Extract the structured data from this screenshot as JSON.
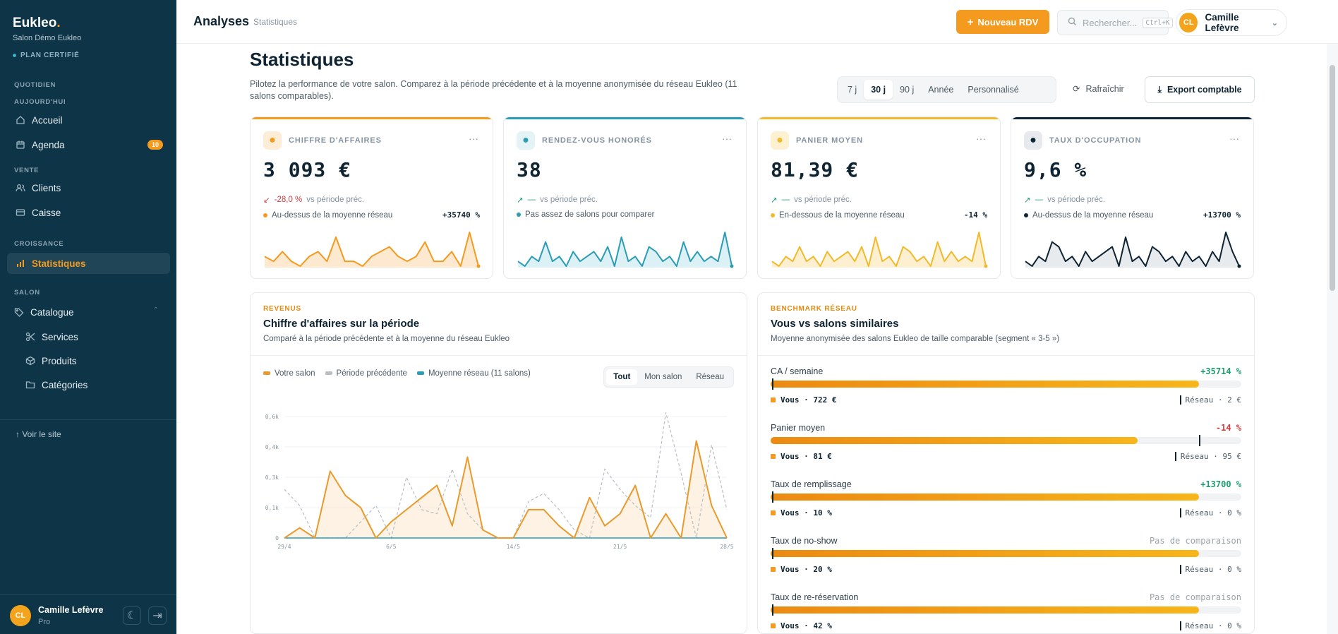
{
  "sidebar": {
    "brand": "Eukleo",
    "brand_dot": ".",
    "salon": "Salon Démo Eukleo",
    "plan": "PLAN CERTIFIÉ",
    "sec_quotidien": "QUOTIDIEN",
    "sec_aujourdhui": "AUJOURD'HUI",
    "accueil": "Accueil",
    "agenda": "Agenda",
    "agenda_badge": "10",
    "sec_vente": "VENTE",
    "clients": "Clients",
    "caisse": "Caisse",
    "sec_croissance": "CROISSANCE",
    "statistiques": "Statistiques",
    "sec_salon": "SALON",
    "catalogue": "Catalogue",
    "services": "Services",
    "produits": "Produits",
    "categories": "Catégories",
    "voir_site": "Voir le site",
    "user_initials": "CL",
    "user_name": "Camille Lefèvre",
    "user_role": "Pro"
  },
  "topbar": {
    "title": "Analyses",
    "subtitle": "Statistiques",
    "new_rdv": "Nouveau RDV",
    "search_placeholder": "Rechercher...",
    "search_kbd": "Ctrl+K",
    "user_initials": "CL",
    "user_name": "Camille Lefèvre"
  },
  "page": {
    "title": "Statistiques",
    "description": "Pilotez la performance de votre salon. Comparez à la période précédente et à la moyenne anonymisée du réseau Eukleo (11 salons comparables).",
    "periods": [
      "7 j",
      "30 j",
      "90 j",
      "Année",
      "Personnalisé"
    ],
    "period_selected": "30 j",
    "refresh": "Rafraîchir",
    "export": "Export comptable"
  },
  "kpis": [
    {
      "label": "CHIFFRE D'AFFAIRES",
      "value": "3 093 €",
      "delta": "-28,0 %",
      "vs": "vs période préc.",
      "bench": "Au-dessus de la moyenne réseau",
      "pct": "+35740 %",
      "color": "#f39a1f",
      "fill": "#fde3c4",
      "spark": [
        2,
        1,
        3,
        1,
        0,
        2,
        3,
        1,
        6,
        1,
        1,
        0,
        2,
        3,
        4,
        2,
        1,
        2,
        5,
        1,
        1,
        3,
        0,
        7,
        0
      ]
    },
    {
      "label": "RENDEZ-VOUS HONORÉS",
      "value": "38",
      "delta": "—",
      "vs": "vs période préc.",
      "bench": "Pas assez de salons pour comparer",
      "pct": "",
      "color": "#2a9db5",
      "fill": "#d3edf2",
      "spark": [
        1,
        0,
        2,
        1,
        5,
        1,
        2,
        0,
        3,
        1,
        2,
        3,
        1,
        4,
        0,
        6,
        1,
        2,
        0,
        4,
        3,
        1,
        2,
        0,
        5,
        1,
        3,
        1,
        2,
        1,
        7,
        0
      ]
    },
    {
      "label": "PANIER MOYEN",
      "value": "81,39 €",
      "delta": "—",
      "vs": "vs période préc.",
      "bench": "En-dessous de la moyenne réseau",
      "pct": "-14 %",
      "color": "#f2b92b",
      "fill": "#fcecc4",
      "spark": [
        1,
        0,
        2,
        1,
        4,
        1,
        2,
        0,
        3,
        1,
        2,
        3,
        1,
        4,
        0,
        6,
        1,
        2,
        0,
        4,
        3,
        1,
        2,
        0,
        5,
        1,
        3,
        1,
        2,
        1,
        7,
        0
      ]
    },
    {
      "label": "TAUX D'OCCUPATION",
      "value": "9,6 %",
      "delta": "—",
      "vs": "vs période préc.",
      "bench": "Au-dessus de la moyenne réseau",
      "pct": "+13700 %",
      "color": "#0f2433",
      "fill": "#e2e6ea",
      "spark": [
        1,
        0,
        2,
        1,
        5,
        4,
        1,
        2,
        0,
        3,
        1,
        2,
        3,
        4,
        0,
        6,
        1,
        2,
        0,
        4,
        3,
        1,
        2,
        0,
        3,
        1,
        2,
        0,
        3,
        1,
        7,
        3,
        0
      ]
    }
  ],
  "revenus": {
    "kicker": "REVENUS",
    "title": "Chiffre d'affaires sur la période",
    "subtitle": "Comparé à la période précédente et à la moyenne du réseau Eukleo",
    "legend": [
      "Votre salon",
      "Période précédente",
      "Moyenne réseau (11 salons)"
    ],
    "tabs": [
      "Tout",
      "Mon salon",
      "Réseau"
    ],
    "tab_selected": "Tout"
  },
  "chart_data": {
    "type": "line",
    "x": [
      "29/4",
      "30/4",
      "1/5",
      "2/5",
      "3/5",
      "4/5",
      "5/5",
      "6/5",
      "7/5",
      "8/5",
      "9/5",
      "10/5",
      "11/5",
      "12/5",
      "13/5",
      "14/5",
      "15/5",
      "16/5",
      "17/5",
      "18/5",
      "19/5",
      "20/5",
      "21/5",
      "22/5",
      "23/5",
      "24/5",
      "25/5",
      "26/5",
      "27/5",
      "28/5"
    ],
    "xticks": [
      "29/4",
      "6/5",
      "14/5",
      "21/5",
      "28/5"
    ],
    "yticks": [
      "0",
      "0,1k",
      "0,3k",
      "0,4k",
      "0,6k"
    ],
    "ylim": [
      0,
      0.6
    ],
    "series": [
      {
        "name": "Votre salon",
        "color": "#e89a2c",
        "values": [
          0,
          0.05,
          0,
          0.33,
          0.21,
          0.15,
          0,
          0.08,
          0.14,
          0.2,
          0.26,
          0.06,
          0.4,
          0.04,
          0,
          0,
          0.14,
          0.14,
          0.06,
          0,
          0.2,
          0.06,
          0.12,
          0.26,
          0,
          0.12,
          0,
          0.48,
          0.16,
          0
        ]
      },
      {
        "name": "Période précédente",
        "color": "#b9bec3",
        "values": [
          0.24,
          0.16,
          0,
          0,
          0,
          0.08,
          0.16,
          0,
          0.3,
          0.14,
          0.12,
          0.34,
          0.12,
          0.04,
          0,
          0,
          0.18,
          0.22,
          0.14,
          0.04,
          0,
          0.34,
          0.24,
          0.16,
          0.1,
          0.62,
          0.32,
          0,
          0.46,
          0.14
        ]
      },
      {
        "name": "Moyenne réseau (11 salons)",
        "color": "#2a9db5",
        "values": [
          0,
          0,
          0,
          0,
          0,
          0,
          0,
          0,
          0,
          0,
          0,
          0,
          0,
          0,
          0,
          0,
          0,
          0,
          0,
          0,
          0,
          0,
          0,
          0,
          0,
          0,
          0,
          0,
          0,
          0
        ]
      }
    ]
  },
  "bench": {
    "kicker": "BENCHMARK RÉSEAU",
    "title": "Vous vs salons similaires",
    "subtitle": "Moyenne anonymisée des salons Eukleo de taille comparable (segment « 3-5 »)",
    "rows": [
      {
        "label": "CA / semaine",
        "delta": "+35714 %",
        "delta_color": "#1f9e6e",
        "vous": "Vous · 722 €",
        "reseau": "Réseau · 2 €",
        "fill": 0.91,
        "marker": 0.003
      },
      {
        "label": "Panier moyen",
        "delta": "-14 %",
        "delta_color": "#d6393a",
        "vous": "Vous · 81 €",
        "reseau": "Réseau · 95 €",
        "fill": 0.78,
        "marker": 0.91
      },
      {
        "label": "Taux de remplissage",
        "delta": "+13700 %",
        "delta_color": "#1f9e6e",
        "vous": "Vous · 10 %",
        "reseau": "Réseau · 0 %",
        "fill": 0.91,
        "marker": 0.003
      },
      {
        "label": "Taux de no-show",
        "delta": "Pas de comparaison",
        "delta_color": "#9aa4ab",
        "vous": "Vous · 20 %",
        "reseau": "Réseau · 0 %",
        "fill": 0.91,
        "marker": 0.003
      },
      {
        "label": "Taux de re-réservation",
        "delta": "Pas de comparaison",
        "delta_color": "#9aa4ab",
        "vous": "Vous · 42 %",
        "reseau": "Réseau · 0 %",
        "fill": 0.91,
        "marker": 0.003
      }
    ]
  }
}
